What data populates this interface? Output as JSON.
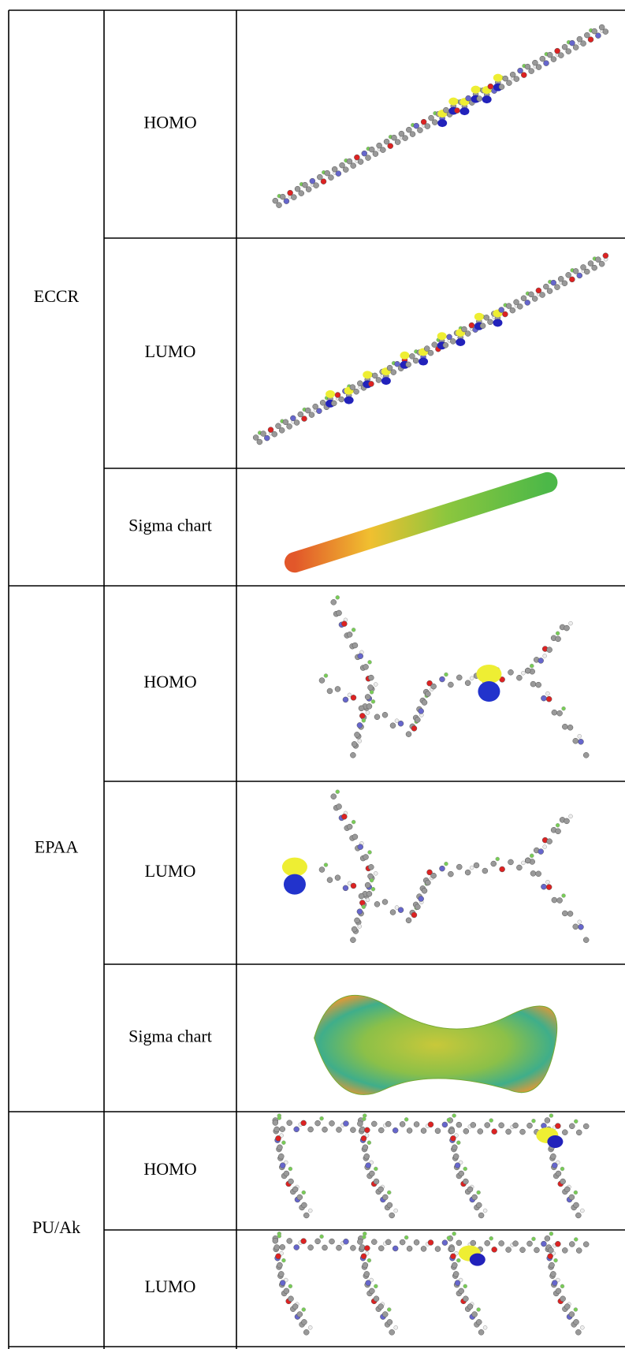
{
  "table": {
    "groups": [
      {
        "label": "ECCR",
        "rows": [
          "HOMO",
          "LUMO",
          "Sigma chart"
        ]
      },
      {
        "label": "EPAA",
        "rows": [
          "HOMO",
          "LUMO",
          "Sigma chart"
        ]
      },
      {
        "label": "PU/Ak",
        "rows": [
          "HOMO",
          "LUMO"
        ]
      }
    ]
  }
}
